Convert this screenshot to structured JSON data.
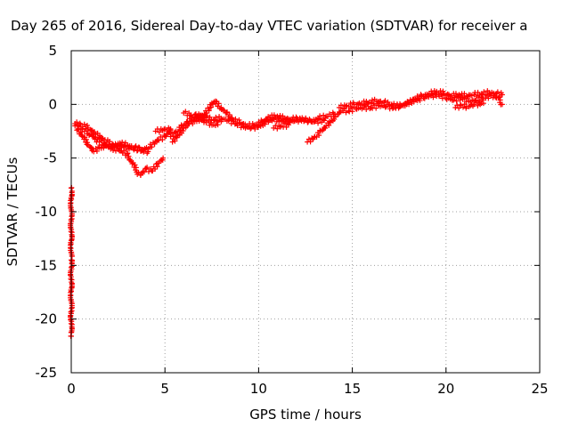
{
  "chart_data": {
    "type": "scatter",
    "title": "Day 265 of 2016, Sidereal Day-to-day VTEC variation (SDTVAR) for receiver a",
    "xlabel": "GPS time / hours",
    "ylabel": "SDTVAR / TECUs",
    "xlim": [
      0,
      25
    ],
    "ylim": [
      -25,
      5
    ],
    "xticks": [
      0,
      5,
      10,
      15,
      20,
      25
    ],
    "yticks": [
      -25,
      -20,
      -15,
      -10,
      -5,
      0,
      5
    ],
    "grid": true,
    "series_color": "#ff0000",
    "series": [
      {
        "values": [
          [
            0.2,
            -2.0
          ],
          [
            0.6,
            -2.3
          ],
          [
            1.0,
            -2.8
          ],
          [
            1.5,
            -3.5
          ],
          [
            2.0,
            -4.0
          ],
          [
            2.5,
            -4.2
          ],
          [
            3.0,
            -4.6
          ],
          [
            3.5,
            -6.3
          ],
          [
            3.7,
            -6.6
          ],
          [
            4.0,
            -6.0
          ],
          [
            4.3,
            -6.2
          ],
          [
            4.6,
            -5.5
          ],
          [
            4.9,
            -5.0
          ]
        ]
      },
      {
        "values": [
          [
            0.2,
            -1.8
          ],
          [
            0.5,
            -1.9
          ],
          [
            0.9,
            -2.2
          ],
          [
            1.3,
            -2.8
          ],
          [
            1.8,
            -3.3
          ],
          [
            2.3,
            -3.9
          ],
          [
            2.8,
            -4.0
          ],
          [
            3.3,
            -4.1
          ],
          [
            3.8,
            -4.2
          ],
          [
            4.2,
            -4.0
          ],
          [
            4.6,
            -3.3
          ],
          [
            5.0,
            -3.0
          ],
          [
            5.3,
            -2.3
          ]
        ]
      },
      {
        "values": [
          [
            0.3,
            -2.4
          ],
          [
            0.6,
            -3.0
          ],
          [
            0.9,
            -3.8
          ],
          [
            1.2,
            -4.4
          ],
          [
            1.5,
            -4.0
          ],
          [
            1.9,
            -3.8
          ],
          [
            2.2,
            -4.0
          ],
          [
            2.6,
            -3.6
          ],
          [
            3.0,
            -3.8
          ],
          [
            3.4,
            -4.0
          ],
          [
            3.8,
            -4.3
          ],
          [
            4.1,
            -4.4
          ]
        ]
      },
      {
        "values": [
          [
            4.5,
            -2.5
          ],
          [
            5.0,
            -2.3
          ],
          [
            5.3,
            -2.4
          ]
        ]
      },
      {
        "values": [
          [
            5.3,
            -3.0
          ],
          [
            5.6,
            -2.5
          ],
          [
            5.9,
            -2.0
          ],
          [
            6.2,
            -1.6
          ],
          [
            6.5,
            -1.2
          ],
          [
            6.8,
            -0.9
          ],
          [
            7.2,
            -1.2
          ],
          [
            7.6,
            -1.4
          ],
          [
            8.0,
            -1.3
          ],
          [
            8.4,
            -1.5
          ],
          [
            8.8,
            -1.8
          ],
          [
            9.2,
            -2.1
          ],
          [
            9.6,
            -2.2
          ],
          [
            10.0,
            -2.0
          ],
          [
            10.4,
            -1.6
          ],
          [
            10.8,
            -1.4
          ],
          [
            11.2,
            -1.5
          ],
          [
            11.6,
            -1.6
          ],
          [
            12.0,
            -1.5
          ],
          [
            12.4,
            -1.4
          ],
          [
            12.8,
            -1.6
          ],
          [
            13.2,
            -1.3
          ],
          [
            13.6,
            -1.1
          ],
          [
            14.0,
            -0.9
          ]
        ]
      },
      {
        "values": [
          [
            5.4,
            -3.5
          ],
          [
            5.7,
            -2.8
          ],
          [
            6.0,
            -2.2
          ],
          [
            6.3,
            -1.8
          ],
          [
            6.6,
            -1.5
          ],
          [
            7.0,
            -1.3
          ],
          [
            7.4,
            -0.3
          ],
          [
            7.7,
            0.3
          ],
          [
            8.0,
            -0.3
          ],
          [
            8.3,
            -0.8
          ],
          [
            8.6,
            -1.4
          ],
          [
            9.0,
            -1.7
          ],
          [
            9.4,
            -2.0
          ],
          [
            9.8,
            -1.9
          ],
          [
            10.2,
            -1.6
          ],
          [
            10.6,
            -1.2
          ],
          [
            11.0,
            -1.1
          ],
          [
            11.4,
            -1.3
          ],
          [
            11.8,
            -1.4
          ],
          [
            12.2,
            -1.3
          ],
          [
            12.6,
            -1.5
          ],
          [
            13.0,
            -1.6
          ],
          [
            13.5,
            -1.5
          ]
        ]
      },
      {
        "values": [
          [
            6.0,
            -0.8
          ],
          [
            6.4,
            -1.0
          ],
          [
            6.8,
            -1.3
          ],
          [
            7.2,
            -1.7
          ],
          [
            7.6,
            -1.9
          ],
          [
            8.0,
            -1.6
          ]
        ]
      },
      {
        "values": [
          [
            10.8,
            -2.2
          ],
          [
            11.2,
            -2.0
          ],
          [
            11.6,
            -1.9
          ]
        ]
      },
      {
        "values": [
          [
            12.6,
            -3.5
          ],
          [
            13.0,
            -3.0
          ],
          [
            13.3,
            -2.5
          ],
          [
            13.6,
            -2.0
          ],
          [
            13.9,
            -1.5
          ],
          [
            14.2,
            -0.9
          ],
          [
            14.5,
            -0.6
          ],
          [
            14.8,
            -0.6
          ],
          [
            15.2,
            -0.4
          ],
          [
            15.6,
            -0.3
          ],
          [
            16.0,
            -0.3
          ],
          [
            16.4,
            -0.1
          ],
          [
            16.8,
            -0.2
          ],
          [
            17.2,
            -0.3
          ],
          [
            17.6,
            -0.1
          ],
          [
            18.0,
            0.2
          ],
          [
            18.4,
            0.4
          ],
          [
            18.8,
            0.6
          ],
          [
            19.2,
            0.8
          ],
          [
            19.6,
            0.9
          ],
          [
            20.0,
            0.6
          ],
          [
            20.4,
            0.4
          ],
          [
            20.8,
            0.6
          ],
          [
            21.2,
            0.3
          ],
          [
            21.6,
            0.4
          ],
          [
            22.0,
            0.6
          ],
          [
            22.4,
            0.8
          ],
          [
            22.8,
            0.6
          ],
          [
            23.0,
            0.0
          ]
        ]
      },
      {
        "values": [
          [
            14.3,
            -0.3
          ],
          [
            14.7,
            -0.1
          ],
          [
            15.1,
            0.0
          ],
          [
            15.5,
            0.1
          ],
          [
            15.9,
            0.2
          ],
          [
            16.3,
            0.3
          ],
          [
            16.7,
            0.2
          ],
          [
            17.1,
            0.0
          ],
          [
            17.5,
            -0.2
          ],
          [
            17.9,
            0.0
          ],
          [
            18.3,
            0.5
          ],
          [
            18.7,
            0.8
          ],
          [
            19.1,
            1.0
          ],
          [
            19.5,
            1.2
          ],
          [
            19.9,
            1.0
          ],
          [
            20.3,
            0.8
          ],
          [
            20.7,
            0.9
          ],
          [
            21.1,
            0.8
          ],
          [
            21.5,
            0.9
          ],
          [
            21.9,
            1.0
          ],
          [
            22.3,
            1.1
          ],
          [
            22.7,
            1.0
          ],
          [
            23.0,
            0.9
          ]
        ]
      },
      {
        "values": [
          [
            20.5,
            -0.3
          ],
          [
            20.8,
            -0.1
          ],
          [
            21.1,
            -0.2
          ],
          [
            21.5,
            0.0
          ],
          [
            22.0,
            0.1
          ]
        ]
      },
      {
        "values": [
          [
            0.0,
            -7.8
          ],
          [
            0.0,
            -14.5
          ],
          [
            0.0,
            -21.6
          ]
        ]
      }
    ]
  }
}
